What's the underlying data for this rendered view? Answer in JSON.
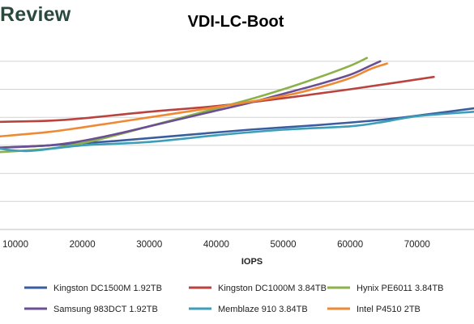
{
  "brand": {
    "text": "Review"
  },
  "chart_data": {
    "type": "line",
    "title": "VDI-LC-Boot",
    "xlabel": "IOPS",
    "ylabel": "",
    "xlim": [
      7700,
      78500
    ],
    "ylim": [
      0,
      1.65
    ],
    "x_ticks": [
      10000,
      20000,
      30000,
      40000,
      50000,
      60000,
      70000
    ],
    "y_gridlines": [
      0.25,
      0.5,
      0.75,
      1.0,
      1.25,
      1.5
    ],
    "grid": "horizontal",
    "legend_position": "bottom",
    "series": [
      {
        "name": "Kingston DC1500M 1.92TB",
        "color": "#3a5da0",
        "x": [
          7700,
          15000,
          25000,
          35000,
          45000,
          55000,
          65000,
          72000,
          78500
        ],
        "y": [
          0.73,
          0.75,
          0.79,
          0.84,
          0.89,
          0.93,
          0.98,
          1.03,
          1.08
        ]
      },
      {
        "name": "Kingston DC1000M 3.84TB",
        "color": "#b9433f",
        "x": [
          7700,
          15000,
          20000,
          30000,
          40000,
          50000,
          60000,
          68000,
          72500
        ],
        "y": [
          0.96,
          0.97,
          0.99,
          1.05,
          1.1,
          1.17,
          1.25,
          1.32,
          1.36
        ]
      },
      {
        "name": "Hynix PE6011 3.84TB",
        "color": "#8cb04a",
        "x": [
          7700,
          15000,
          20000,
          25000,
          30000,
          35000,
          40000,
          45000,
          50000,
          55000,
          60000,
          62500
        ],
        "y": [
          0.69,
          0.72,
          0.77,
          0.84,
          0.92,
          1.0,
          1.08,
          1.16,
          1.25,
          1.35,
          1.46,
          1.53
        ]
      },
      {
        "name": "Samsung 983DCT 1.92TB",
        "color": "#6a4f94",
        "x": [
          7700,
          15000,
          20000,
          25000,
          30000,
          35000,
          40000,
          45000,
          50000,
          55000,
          60000,
          63000,
          64500
        ],
        "y": [
          0.73,
          0.75,
          0.79,
          0.85,
          0.92,
          0.99,
          1.06,
          1.13,
          1.21,
          1.29,
          1.38,
          1.46,
          1.5
        ]
      },
      {
        "name": "Memblaze 910 3.84TB",
        "color": "#3d9eb8",
        "x": [
          7700,
          12000,
          20000,
          30000,
          40000,
          50000,
          60000,
          65000,
          70000,
          78500
        ],
        "y": [
          0.72,
          0.7,
          0.75,
          0.78,
          0.84,
          0.89,
          0.92,
          0.96,
          1.01,
          1.05
        ]
      },
      {
        "name": "Intel P4510 2TB",
        "color": "#ee8a34",
        "x": [
          7700,
          15000,
          20000,
          30000,
          40000,
          50000,
          55000,
          60000,
          63000,
          65500
        ],
        "y": [
          0.83,
          0.87,
          0.91,
          1.0,
          1.09,
          1.19,
          1.26,
          1.35,
          1.43,
          1.48
        ]
      }
    ]
  }
}
